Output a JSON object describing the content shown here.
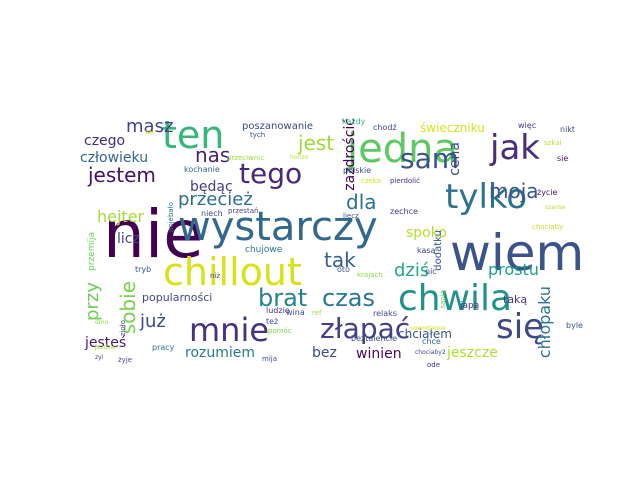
{
  "words": [
    {
      "text": "nie",
      "color": "#440154"
    },
    {
      "text": "wiem",
      "color": "#3b528b"
    },
    {
      "text": "wystarczy",
      "color": "#31688e"
    },
    {
      "text": "chillout",
      "color": "#d8e219"
    },
    {
      "text": "chwila",
      "color": "#21918c"
    },
    {
      "text": "jedna",
      "color": "#5ec962"
    },
    {
      "text": "ten",
      "color": "#35b779"
    },
    {
      "text": "tylko",
      "color": "#2c728e"
    },
    {
      "text": "się",
      "color": "#3e4989"
    },
    {
      "text": "jak",
      "color": "#472d7b"
    },
    {
      "text": "mnie",
      "color": "#46327e"
    },
    {
      "text": "tego",
      "color": "#482878"
    },
    {
      "text": "złapać",
      "color": "#433e85"
    },
    {
      "text": "sam",
      "color": "#3b528b"
    },
    {
      "text": "jest",
      "color": "#a0da39"
    },
    {
      "text": "sobie",
      "color": "#7ad151"
    },
    {
      "text": "czas",
      "color": "#2a788e"
    },
    {
      "text": "brat",
      "color": "#26828e"
    },
    {
      "text": "tak",
      "color": "#365c8d"
    },
    {
      "text": "dla",
      "color": "#2c728e"
    },
    {
      "text": "moja",
      "color": "#39568c"
    },
    {
      "text": "masz",
      "color": "#424086"
    },
    {
      "text": "nas",
      "color": "#482173"
    },
    {
      "text": "jestem",
      "color": "#471063"
    },
    {
      "text": "przecież",
      "color": "#2d708e"
    },
    {
      "text": "chłopaku",
      "color": "#2c728e"
    },
    {
      "text": "już",
      "color": "#3e4a89"
    },
    {
      "text": "dziś",
      "color": "#22a884"
    },
    {
      "text": "spoko",
      "color": "#b5de2b"
    },
    {
      "text": "prostu",
      "color": "#1fa187"
    },
    {
      "text": "zazdrościć",
      "color": "#440154"
    },
    {
      "text": "cena",
      "color": "#3d4d8a"
    },
    {
      "text": "przy",
      "color": "#6ccd5a"
    },
    {
      "text": "hejter",
      "color": "#a5db36"
    },
    {
      "text": "czego",
      "color": "#472c7a"
    },
    {
      "text": "człowieku",
      "color": "#31688e"
    },
    {
      "text": "będąc",
      "color": "#443983"
    },
    {
      "text": "licz",
      "color": "#404588"
    },
    {
      "text": "rozumiem",
      "color": "#2a788e"
    },
    {
      "text": "jeszcze",
      "color": "#b0dd2f"
    },
    {
      "text": "winien",
      "color": "#46085c"
    },
    {
      "text": "jesteś",
      "color": "#48186a"
    },
    {
      "text": "bez",
      "color": "#3f4889"
    },
    {
      "text": "chciałem",
      "color": "#3b528b"
    },
    {
      "text": "popularności",
      "color": "#3f4788"
    },
    {
      "text": "świeczniku",
      "color": "#d8e219"
    },
    {
      "text": "poszanowanie",
      "color": "#3e4989"
    },
    {
      "text": "taką",
      "color": "#453882"
    },
    {
      "text": "japą",
      "color": "#46337f"
    },
    {
      "text": "dodatku",
      "color": "#3b528b"
    },
    {
      "text": "każdy",
      "color": "#35b779"
    },
    {
      "text": "chodź",
      "color": "#3e4a89"
    },
    {
      "text": "więc",
      "color": "#443983"
    },
    {
      "text": "nikt",
      "color": "#3b528b"
    },
    {
      "text": "szkai",
      "color": "#b5de2b"
    },
    {
      "text": "sie",
      "color": "#471365"
    },
    {
      "text": "życie",
      "color": "#48186a"
    },
    {
      "text": "chociaby",
      "color": "#bddf26"
    },
    {
      "text": "polskie",
      "color": "#3e4989"
    },
    {
      "text": "czeka",
      "color": "#d0e11c"
    },
    {
      "text": "pierdolić",
      "color": "#46307e"
    },
    {
      "text": "zechce",
      "color": "#453882"
    },
    {
      "text": "kochanie",
      "color": "#31688e"
    },
    {
      "text": "przeciwnic",
      "color": "#a0da39"
    },
    {
      "text": "niech",
      "color": "#3e4a89"
    },
    {
      "text": "przestań",
      "color": "#433e85"
    },
    {
      "text": "tych",
      "color": "#3b528b"
    },
    {
      "text": "horizo",
      "color": "#bddf26"
    },
    {
      "text": "przemija",
      "color": "#6ccd5a"
    },
    {
      "text": "pojebało",
      "color": "#2c728e"
    },
    {
      "text": "chujowe",
      "color": "#2a788e"
    },
    {
      "text": "kasa",
      "color": "#3e4989"
    },
    {
      "text": "oto",
      "color": "#3b528b"
    },
    {
      "text": "krajach",
      "color": "#8fd744"
    },
    {
      "text": "nic",
      "color": "#3b528b"
    },
    {
      "text": "ludzie",
      "color": "#46327e"
    },
    {
      "text": "też",
      "color": "#3b528b"
    },
    {
      "text": "pomóc",
      "color": "#7ad151"
    },
    {
      "text": "powodzenie",
      "color": "#d8e219"
    },
    {
      "text": "relaks",
      "color": "#3e4989"
    },
    {
      "text": "beztalencie",
      "color": "#3b528b"
    },
    {
      "text": "chce",
      "color": "#31688e"
    },
    {
      "text": "ode",
      "color": "#46327e"
    },
    {
      "text": "sapią",
      "color": "#6ccd5a"
    },
    {
      "text": "byle",
      "color": "#3b528b"
    },
    {
      "text": "chociaby2",
      "color": "#3e4989"
    },
    {
      "text": "tryb",
      "color": "#3b528b"
    },
    {
      "text": "niż",
      "color": "#3e4989"
    },
    {
      "text": "pracy",
      "color": "#2c728e"
    },
    {
      "text": "mija",
      "color": "#3b528b"
    },
    {
      "text": "żyje",
      "color": "#3e4989"
    },
    {
      "text": "zioło",
      "color": "#3b528b"
    },
    {
      "text": "wina",
      "color": "#3e4989"
    },
    {
      "text": "ref",
      "color": "#a0da39"
    },
    {
      "text": "liecz",
      "color": "#3b528b"
    },
    {
      "text": "zyi",
      "color": "#3e4989"
    },
    {
      "text": "jeździe",
      "color": "#a0da39"
    },
    {
      "text": "zat",
      "color": "#d8e219"
    },
    {
      "text": "szanse",
      "color": "#b5de2b"
    },
    {
      "text": "dmo",
      "color": "#8fd744"
    }
  ]
}
